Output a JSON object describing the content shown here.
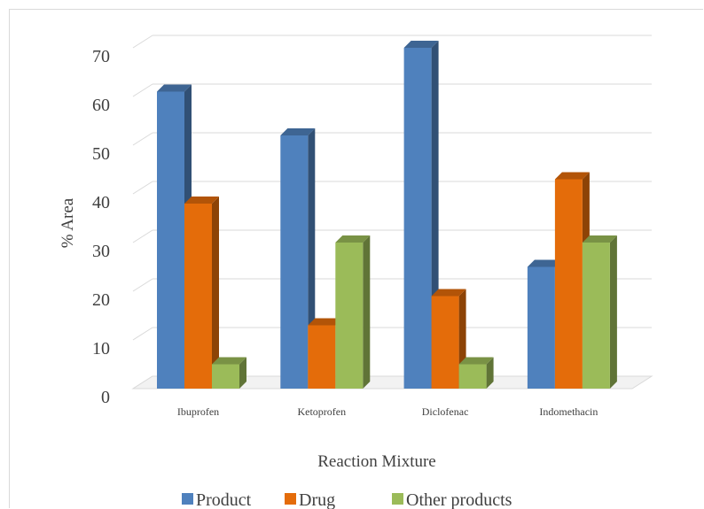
{
  "chart_data": {
    "type": "bar",
    "style": "3d-clustered-column",
    "categories": [
      "Ibuprofen",
      "Ketoprofen",
      "Diclofenac",
      "Indomethacin"
    ],
    "series": [
      {
        "name": "Product",
        "values": [
          61,
          52,
          70,
          25
        ],
        "color": "#4f81bd"
      },
      {
        "name": "Drug",
        "values": [
          38,
          13,
          19,
          43
        ],
        "color": "#e46c0a"
      },
      {
        "name": "Other products",
        "values": [
          5,
          30,
          5,
          30
        ],
        "color": "#9bbb59"
      }
    ],
    "title": "",
    "xlabel": "Reaction Mixture",
    "ylabel": "% Area",
    "ylim": [
      0,
      70
    ],
    "yticks": [
      0,
      10,
      20,
      30,
      40,
      50,
      60,
      70
    ],
    "grid": true,
    "legend": "bottom"
  }
}
